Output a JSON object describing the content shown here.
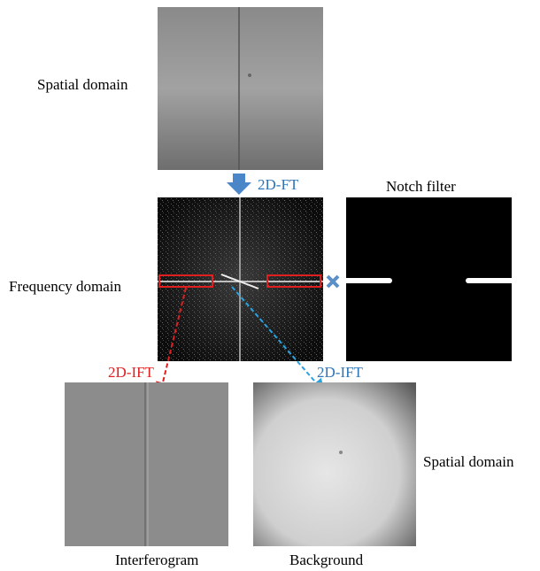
{
  "top": {
    "label": "Spatial domain"
  },
  "transform": {
    "label": "2D-FT"
  },
  "filter": {
    "label": "Notch filter"
  },
  "middle": {
    "label": "Frequency domain"
  },
  "inverse": {
    "left": "2D-IFT",
    "right": "2D-IFT"
  },
  "bottom": {
    "label": "Spatial domain",
    "left_caption": "Interferogram",
    "right_caption": "Background"
  }
}
